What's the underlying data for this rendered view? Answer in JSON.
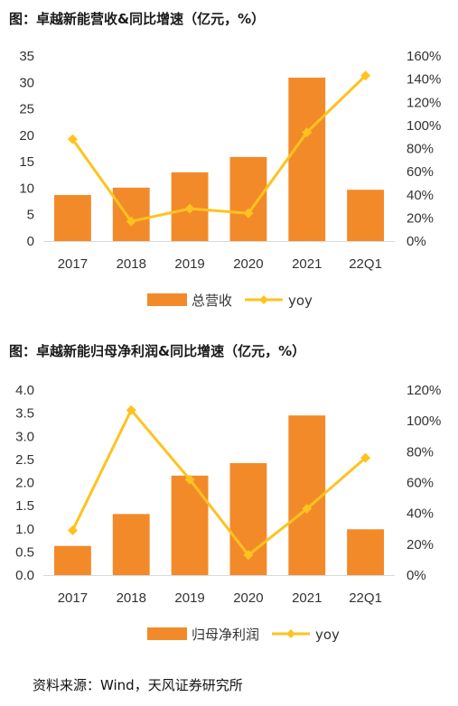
{
  "charts": [
    {
      "title": "图：卓越新能营收&同比增速（亿元，%）",
      "legend": [
        "总营收",
        "yoy"
      ]
    },
    {
      "title": "图：卓越新能归母净利润&同比增速（亿元，%）",
      "legend": [
        "归母净利润",
        "yoy"
      ]
    }
  ],
  "source": "资料来源：Wind，天风证券研究所",
  "colors": {
    "bar": "#F28A2A",
    "line": "#FFC21F",
    "axis": "#D9D9D9"
  },
  "chart_data": [
    {
      "type": "bar",
      "categories": [
        "2017",
        "2018",
        "2019",
        "2020",
        "2021",
        "22Q1"
      ],
      "series": [
        {
          "name": "总营收",
          "type": "bar",
          "axis": "left",
          "values": [
            8.7,
            10.1,
            13.0,
            15.9,
            30.9,
            9.7
          ]
        },
        {
          "name": "yoy",
          "type": "line",
          "axis": "right",
          "values": [
            88,
            17,
            28,
            24,
            94,
            143
          ]
        }
      ],
      "ylim_left": [
        0,
        35
      ],
      "yticks_left": [
        "0",
        "5",
        "10",
        "15",
        "20",
        "25",
        "30",
        "35"
      ],
      "ylim_right": [
        0,
        160
      ],
      "yticks_right": [
        "0%",
        "20%",
        "40%",
        "60%",
        "80%",
        "100%",
        "120%",
        "140%",
        "160%"
      ],
      "legend_position": "bottom"
    },
    {
      "type": "bar",
      "categories": [
        "2017",
        "2018",
        "2019",
        "2020",
        "2021",
        "22Q1"
      ],
      "series": [
        {
          "name": "归母净利润",
          "type": "bar",
          "axis": "left",
          "values": [
            0.63,
            1.32,
            2.15,
            2.42,
            3.45,
            0.99
          ]
        },
        {
          "name": "yoy",
          "type": "line",
          "axis": "right",
          "values": [
            29,
            107,
            62,
            13,
            43,
            76
          ]
        }
      ],
      "ylim_left": [
        0,
        4
      ],
      "yticks_left": [
        "0.0",
        "0.5",
        "1.0",
        "1.5",
        "2.0",
        "2.5",
        "3.0",
        "3.5",
        "4.0"
      ],
      "ylim_right": [
        0,
        120
      ],
      "yticks_right": [
        "0%",
        "20%",
        "40%",
        "60%",
        "80%",
        "100%",
        "120%"
      ],
      "legend_position": "bottom"
    }
  ]
}
